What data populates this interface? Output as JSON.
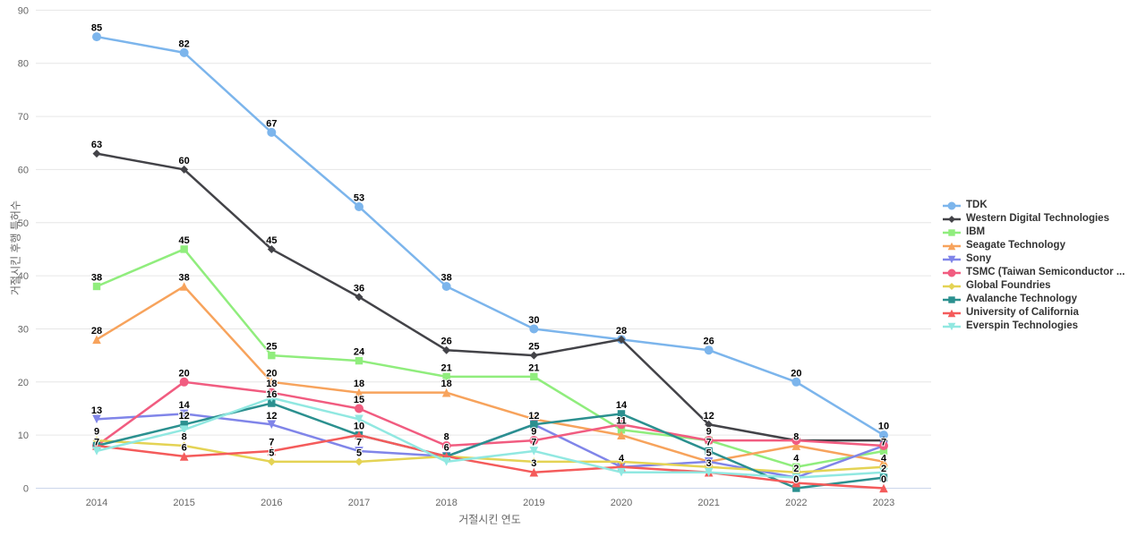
{
  "chart_data": {
    "type": "line",
    "title": "",
    "xlabel": "거절시킨 연도",
    "ylabel": "거절시킨 후행 특허수",
    "x_categories": [
      "2014",
      "2015",
      "2016",
      "2017",
      "2018",
      "2019",
      "2020",
      "2021",
      "2022",
      "2023"
    ],
    "ylim": [
      0,
      90
    ],
    "yticks": [
      0,
      10,
      20,
      30,
      40,
      50,
      60,
      70,
      80,
      90
    ],
    "grid": "horizontal",
    "legend_position": "right",
    "series": [
      {
        "name": "TDK",
        "color": "#7cb5ec",
        "marker": "circle",
        "values": [
          85,
          82,
          67,
          53,
          38,
          30,
          28,
          26,
          20,
          10
        ],
        "labels": [
          85,
          82,
          67,
          53,
          38,
          30,
          28,
          26,
          20,
          10
        ]
      },
      {
        "name": "Western Digital Technologies",
        "color": "#434348",
        "marker": "diamond",
        "values": [
          63,
          60,
          45,
          36,
          26,
          25,
          28,
          12,
          9,
          9
        ],
        "labels": [
          63,
          60,
          45,
          36,
          26,
          25,
          null,
          12,
          null,
          null
        ]
      },
      {
        "name": "IBM",
        "color": "#90ed7d",
        "marker": "square",
        "values": [
          38,
          45,
          25,
          24,
          21,
          21,
          11,
          9,
          4,
          7
        ],
        "labels": [
          38,
          45,
          25,
          24,
          21,
          21,
          11,
          null,
          4,
          7
        ]
      },
      {
        "name": "Seagate Technology",
        "color": "#f7a35c",
        "marker": "triangle",
        "values": [
          28,
          38,
          20,
          18,
          18,
          13,
          10,
          5,
          8,
          5
        ],
        "labels": [
          28,
          38,
          20,
          18,
          18,
          null,
          null,
          null,
          8,
          null
        ]
      },
      {
        "name": "Sony",
        "color": "#8085e9",
        "marker": "triangle-down",
        "values": [
          13,
          14,
          12,
          7,
          6,
          12,
          4,
          5,
          2,
          8
        ],
        "labels": [
          13,
          14,
          12,
          7,
          6,
          null,
          4,
          5,
          2,
          null
        ]
      },
      {
        "name": "TSMC (Taiwan Semiconductor ...",
        "color": "#f15c80",
        "marker": "circle",
        "values": [
          8,
          20,
          18,
          15,
          8,
          9,
          12,
          9,
          9,
          8
        ],
        "labels": [
          null,
          20,
          18,
          15,
          8,
          9,
          null,
          9,
          null,
          null
        ]
      },
      {
        "name": "Global Foundries",
        "color": "#e4d354",
        "marker": "diamond",
        "values": [
          9,
          8,
          5,
          5,
          6,
          5,
          5,
          4,
          3,
          4
        ],
        "labels": [
          9,
          8,
          5,
          5,
          null,
          null,
          null,
          null,
          null,
          4
        ]
      },
      {
        "name": "Avalanche Technology",
        "color": "#2b908f",
        "marker": "square",
        "values": [
          8,
          12,
          16,
          10,
          6,
          12,
          14,
          7,
          0,
          2
        ],
        "labels": [
          null,
          12,
          16,
          10,
          6,
          12,
          14,
          7,
          0,
          2
        ]
      },
      {
        "name": "University of California",
        "color": "#f45b5b",
        "marker": "triangle",
        "values": [
          8,
          6,
          7,
          10,
          6,
          3,
          4,
          3,
          1,
          0
        ],
        "labels": [
          null,
          6,
          7,
          null,
          null,
          3,
          null,
          3,
          null,
          0
        ]
      },
      {
        "name": "Everspin Technologies",
        "color": "#91e8e1",
        "marker": "triangle-down",
        "values": [
          7,
          11,
          17,
          13,
          5,
          7,
          3,
          3,
          2,
          3
        ],
        "labels": [
          7,
          null,
          null,
          null,
          null,
          7,
          null,
          null,
          null,
          null
        ]
      }
    ]
  },
  "colors": {
    "background": "#ffffff",
    "grid": "#e6e6e6",
    "axis_line": "#ccd6eb",
    "tick_text": "#666666",
    "axis_title_text": "#666666",
    "legend_text": "#333333",
    "data_label_text": "#000000"
  }
}
